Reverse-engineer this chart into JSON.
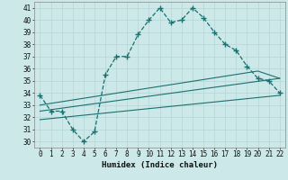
{
  "xlabel": "Humidex (Indice chaleur)",
  "ylabel": "",
  "bg_color": "#cce8e8",
  "grid_color": "#b8d8d8",
  "line_color": "#1a7070",
  "xlim": [
    -0.5,
    22.5
  ],
  "ylim": [
    29.5,
    41.5
  ],
  "xticks": [
    0,
    1,
    2,
    3,
    4,
    5,
    6,
    7,
    8,
    9,
    10,
    11,
    12,
    13,
    14,
    15,
    16,
    17,
    18,
    19,
    20,
    21,
    22
  ],
  "yticks": [
    30,
    31,
    32,
    33,
    34,
    35,
    36,
    37,
    38,
    39,
    40,
    41
  ],
  "main_x": [
    0,
    1,
    2,
    3,
    4,
    5,
    6,
    7,
    8,
    9,
    10,
    11,
    12,
    13,
    14,
    15,
    16,
    17,
    18,
    19,
    20,
    21,
    22
  ],
  "main_y": [
    33.8,
    32.5,
    32.5,
    31.0,
    30.0,
    30.8,
    35.5,
    37.0,
    37.0,
    38.8,
    40.0,
    41.0,
    39.8,
    40.0,
    41.0,
    40.2,
    39.0,
    38.0,
    37.5,
    36.2,
    35.2,
    35.0,
    34.0
  ],
  "line1_x": [
    0,
    22
  ],
  "line1_y": [
    31.8,
    33.8
  ],
  "line2_x": [
    0,
    22
  ],
  "line2_y": [
    32.5,
    35.2
  ],
  "line3_x": [
    0,
    20,
    22
  ],
  "line3_y": [
    33.0,
    35.8,
    35.2
  ]
}
